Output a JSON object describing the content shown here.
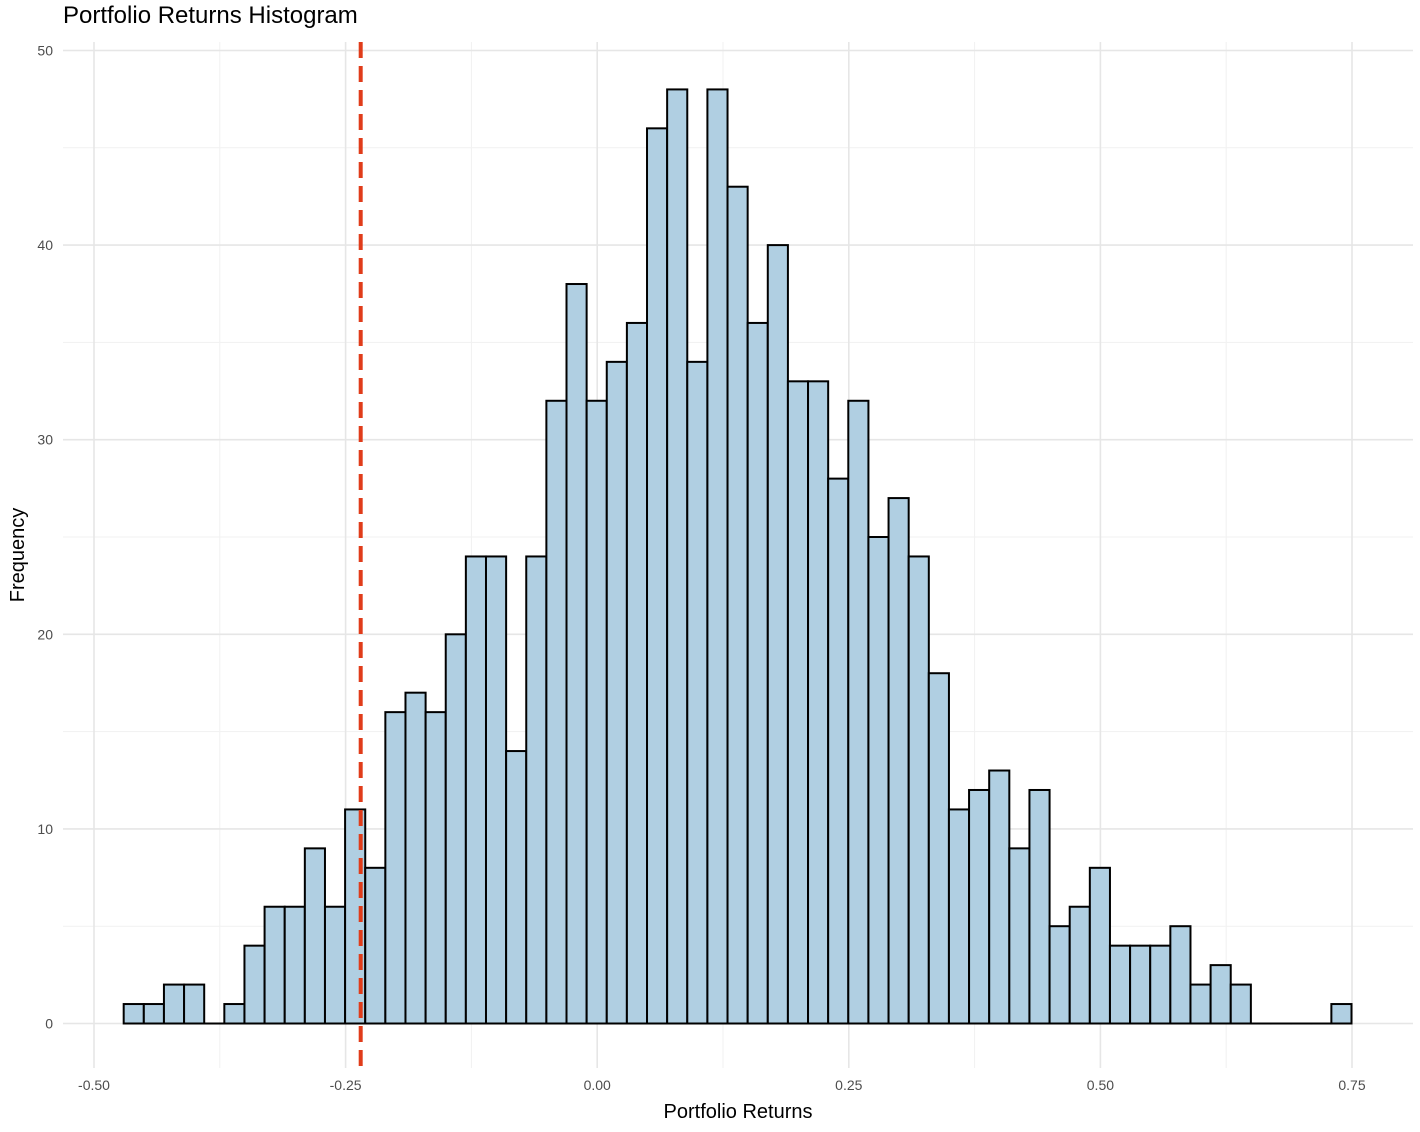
{
  "chart_data": {
    "type": "bar",
    "subtype": "histogram",
    "title": "Portfolio Returns Histogram",
    "xlabel": "Portfolio Returns",
    "ylabel": "Frequency",
    "xlim": [
      -0.5,
      0.75
    ],
    "ylim": [
      0,
      50
    ],
    "x_ticks": [
      -0.5,
      -0.25,
      0.0,
      0.25,
      0.5,
      0.75
    ],
    "x_tick_labels": [
      "-0.50",
      "-0.25",
      "0.00",
      "0.25",
      "0.50",
      "0.75"
    ],
    "y_ticks": [
      0,
      10,
      20,
      30,
      40,
      50
    ],
    "y_tick_labels": [
      "0",
      "10",
      "20",
      "30",
      "40",
      "50"
    ],
    "bin_width": 0.02,
    "first_bin_start": -0.4705,
    "counts": [
      1,
      1,
      2,
      2,
      0,
      1,
      4,
      6,
      6,
      9,
      6,
      11,
      8,
      16,
      17,
      16,
      20,
      24,
      24,
      14,
      24,
      32,
      38,
      32,
      34,
      36,
      46,
      48,
      34,
      48,
      43,
      36,
      40,
      33,
      33,
      28,
      32,
      25,
      27,
      24,
      18,
      11,
      12,
      13,
      9,
      12,
      5,
      6,
      8,
      4,
      4,
      4,
      5,
      2,
      3,
      2,
      0,
      0,
      0,
      0,
      1
    ],
    "bar_fill": "#b0cfe2",
    "bar_outline": "#000000",
    "reference_line": {
      "x": -0.235,
      "color": "#e03c1a",
      "style": "dashed"
    },
    "grid": true,
    "legend": "none"
  }
}
